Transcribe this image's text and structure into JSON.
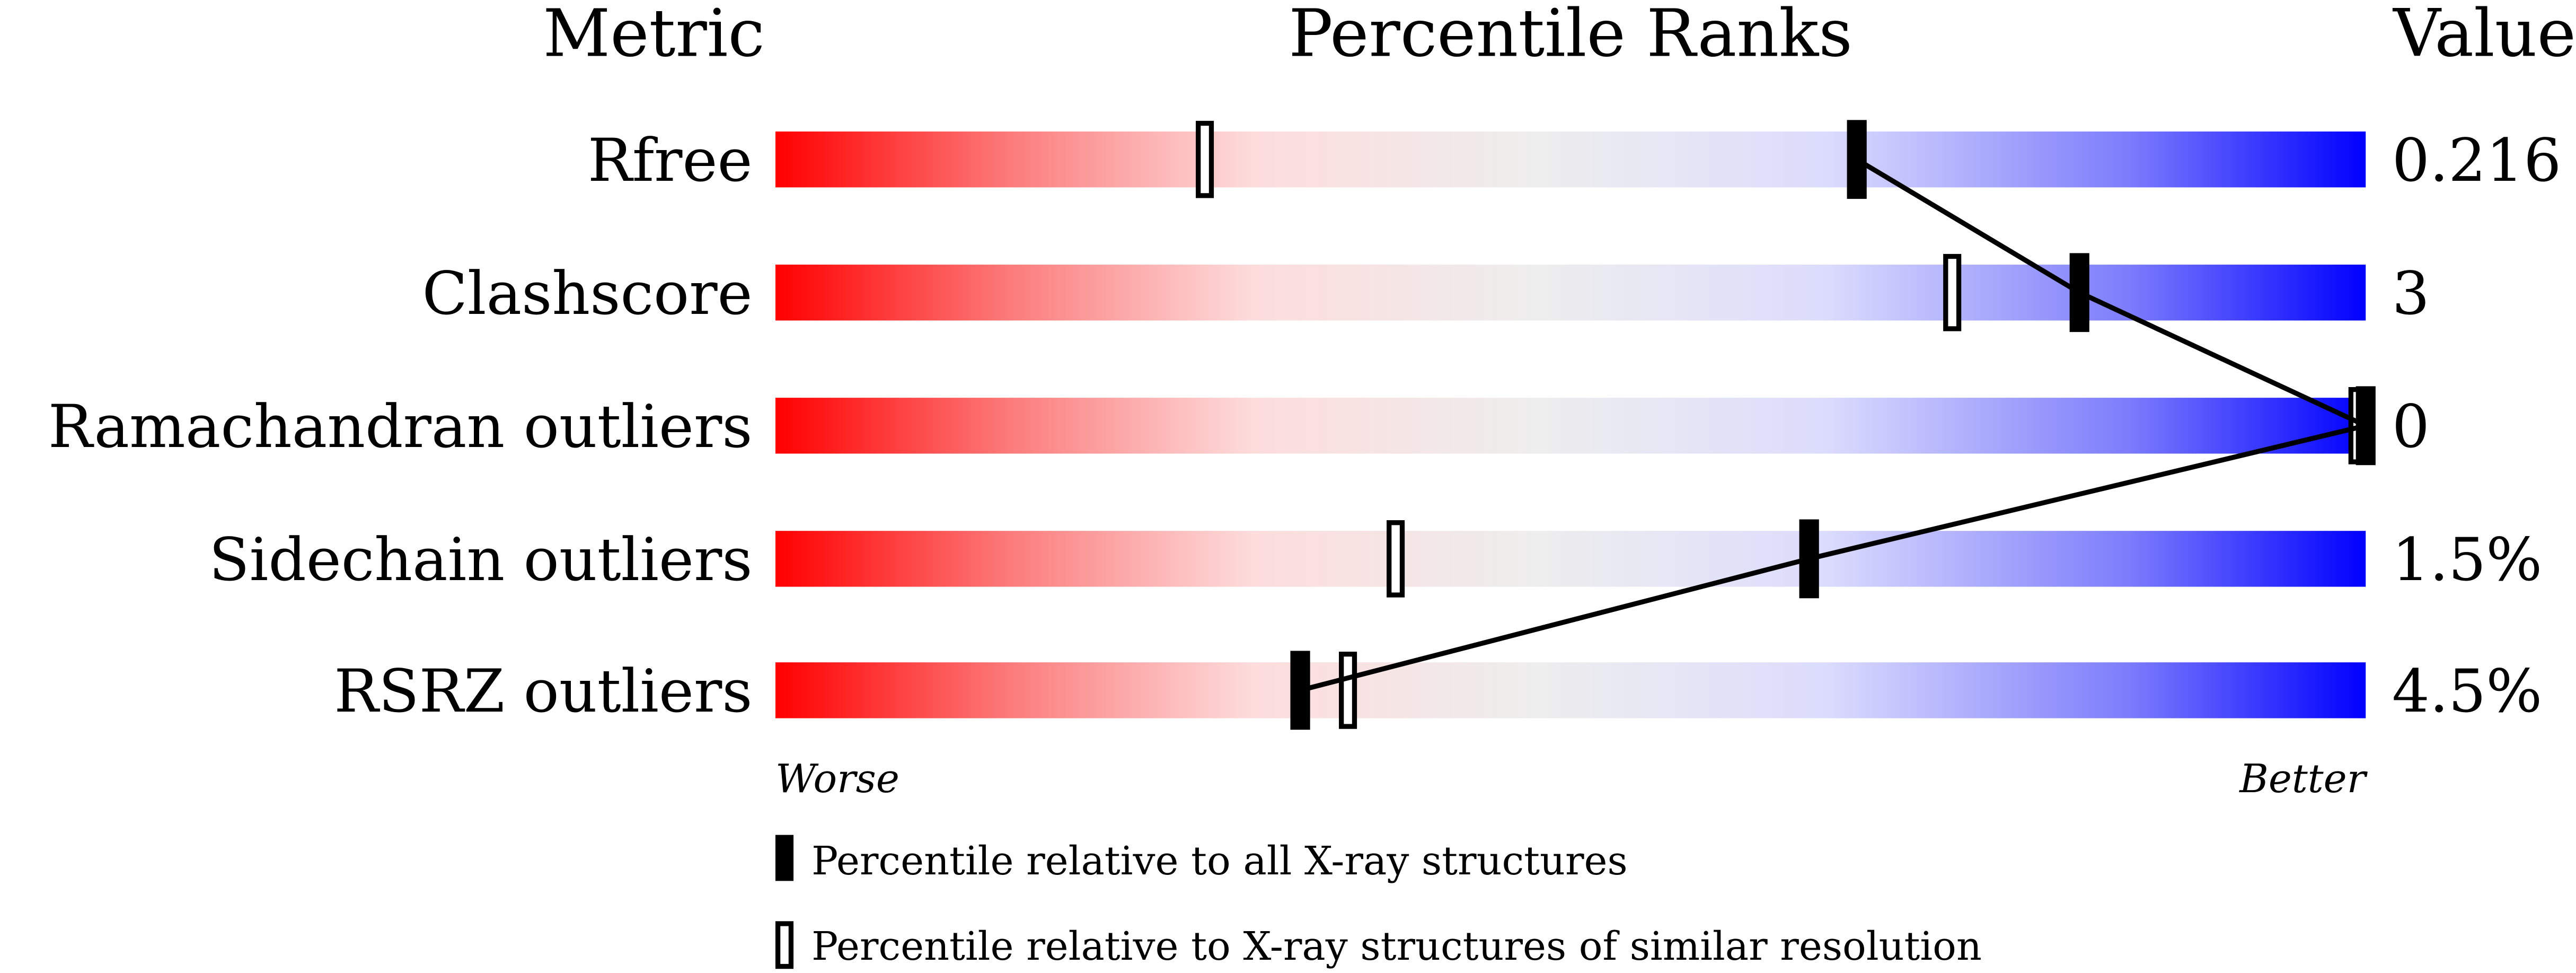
{
  "chart_data": {
    "type": "percentile-bar",
    "headers": {
      "metric": "Metric",
      "ranks": "Percentile Ranks",
      "value": "Value"
    },
    "xlim": [
      0,
      100
    ],
    "axis_labels": {
      "left": "Worse",
      "right": "Better"
    },
    "colors": {
      "worse": "#ff0000",
      "mid": "#eeeeee",
      "better": "#0000ff"
    },
    "rows": [
      {
        "metric": "Rfree",
        "value": "0.216",
        "percentile_all": 68,
        "percentile_similar": 27
      },
      {
        "metric": "Clashscore",
        "value": "3",
        "percentile_all": 82,
        "percentile_similar": 74
      },
      {
        "metric": "Ramachandran outliers",
        "value": "0",
        "percentile_all": 100,
        "percentile_similar": 100
      },
      {
        "metric": "Sidechain outliers",
        "value": "1.5%",
        "percentile_all": 65,
        "percentile_similar": 39
      },
      {
        "metric": "RSRZ outliers",
        "value": "4.5%",
        "percentile_all": 33,
        "percentile_similar": 36
      }
    ],
    "legend": {
      "filled": "Percentile relative to all X-ray structures",
      "open": "Percentile relative to X-ray structures of similar resolution"
    }
  }
}
